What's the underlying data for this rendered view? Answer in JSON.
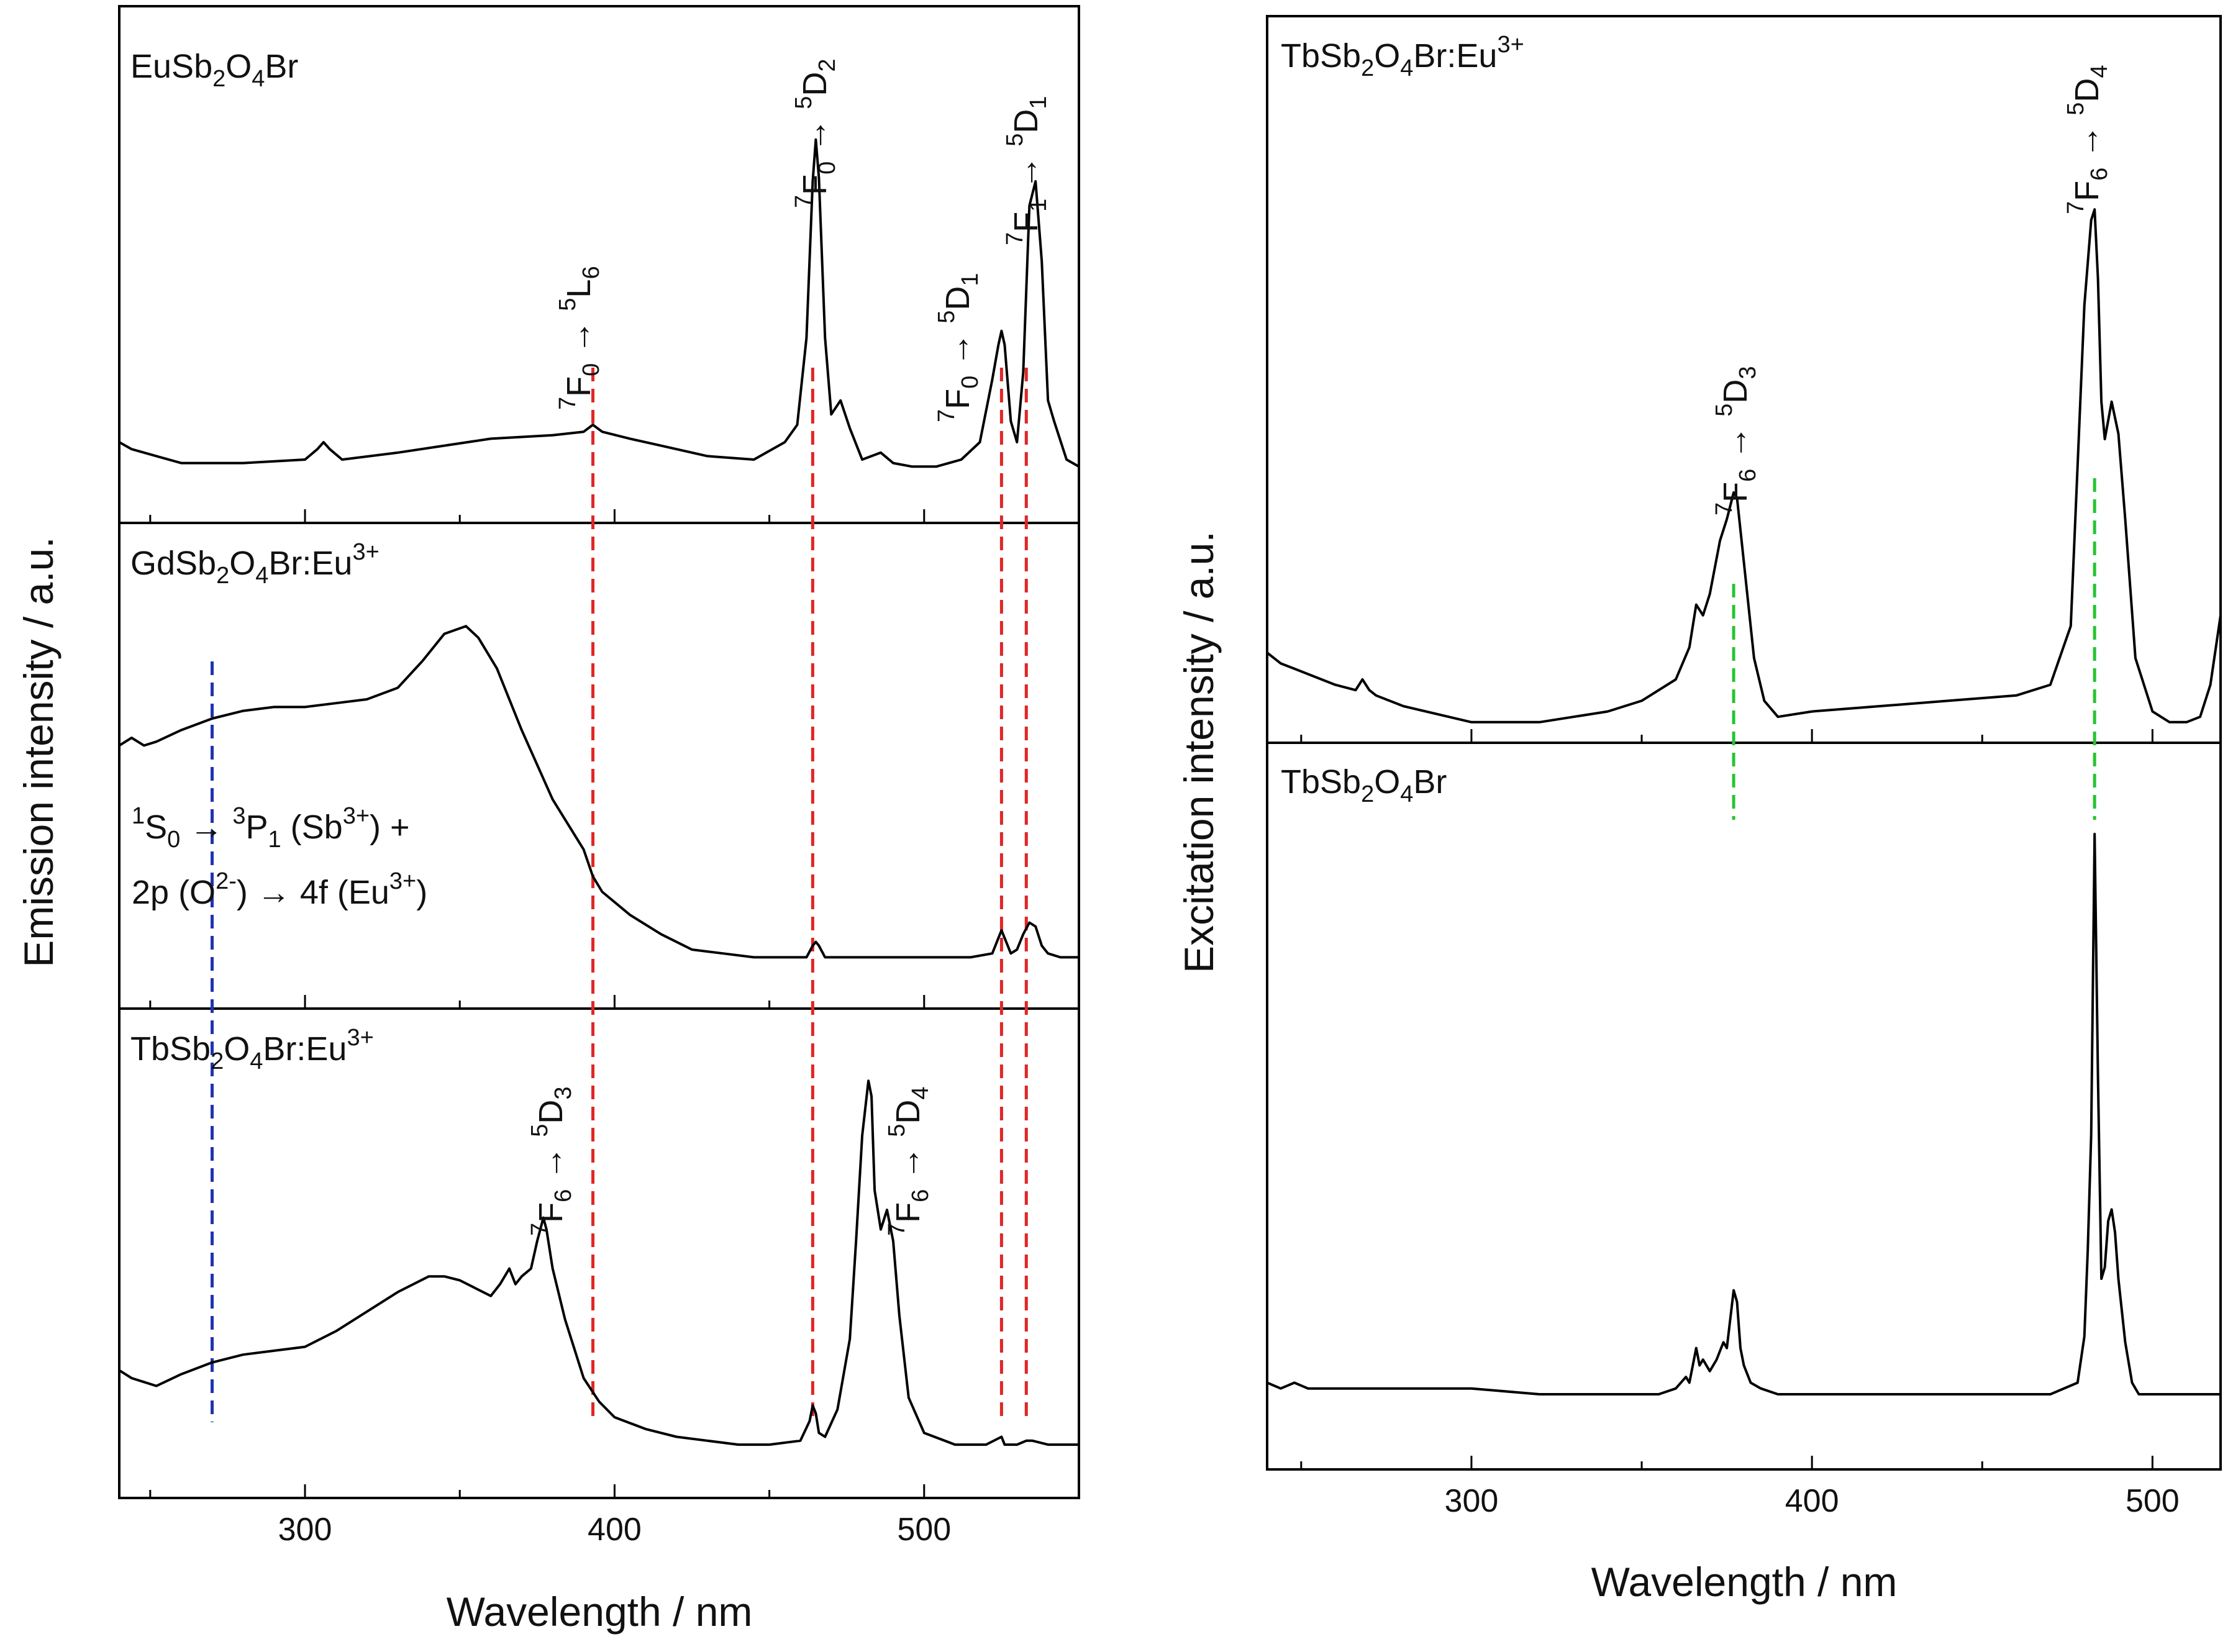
{
  "chart_data": [
    {
      "type": "line",
      "title": "",
      "xlabel": "Wavelength / nm",
      "ylabel": "Emission intensity / a.u.",
      "xlim": [
        240,
        550
      ],
      "xticks": [
        300,
        400,
        500
      ],
      "ylim": [
        0,
        1
      ],
      "panels": [
        {
          "label_base": "EuSb",
          "label_sub1": "2",
          "label_mid": "O",
          "label_sub2": "4",
          "label_end": "Br",
          "label_sup": "",
          "series": {
            "name": "EuSb2O4Br",
            "x": [
              240,
              244,
              248,
              252,
              260,
              280,
              300,
              304,
              306,
              308,
              312,
              330,
              360,
              380,
              390,
              393,
              396,
              405,
              415,
              430,
              445,
              455,
              459,
              462,
              464,
              465,
              466,
              468,
              470,
              473,
              476,
              480,
              486,
              490,
              496,
              504,
              512,
              518,
              522,
              524,
              525,
              526,
              528,
              530,
              532,
              534,
              536,
              538,
              540,
              542,
              546,
              550
            ],
            "y": [
              0.1,
              0.08,
              0.07,
              0.06,
              0.04,
              0.04,
              0.05,
              0.08,
              0.1,
              0.08,
              0.05,
              0.07,
              0.11,
              0.12,
              0.13,
              0.15,
              0.13,
              0.11,
              0.09,
              0.06,
              0.05,
              0.1,
              0.15,
              0.4,
              0.85,
              0.97,
              0.86,
              0.4,
              0.18,
              0.22,
              0.14,
              0.05,
              0.07,
              0.04,
              0.03,
              0.03,
              0.05,
              0.1,
              0.28,
              0.38,
              0.42,
              0.38,
              0.16,
              0.1,
              0.3,
              0.78,
              0.85,
              0.62,
              0.22,
              0.16,
              0.05,
              0.03
            ]
          }
        },
        {
          "label_base": "GdSb",
          "label_sub1": "2",
          "label_mid": "O",
          "label_sub2": "4",
          "label_end": "Br:Eu",
          "label_sup": "3+",
          "series": {
            "name": "GdSb2O4Br:Eu3+",
            "x": [
              240,
              244,
              248,
              252,
              260,
              270,
              280,
              290,
              300,
              310,
              320,
              330,
              338,
              345,
              352,
              356,
              362,
              370,
              380,
              390,
              393,
              396,
              405,
              415,
              425,
              435,
              445,
              455,
              462,
              464,
              465,
              466,
              468,
              472,
              480,
              500,
              515,
              522,
              524,
              525,
              526,
              528,
              530,
              532,
              534,
              536,
              538,
              540,
              544,
              550
            ],
            "y": [
              0.58,
              0.6,
              0.58,
              0.59,
              0.62,
              0.65,
              0.67,
              0.68,
              0.68,
              0.69,
              0.7,
              0.73,
              0.8,
              0.87,
              0.89,
              0.86,
              0.78,
              0.62,
              0.44,
              0.31,
              0.24,
              0.2,
              0.14,
              0.09,
              0.05,
              0.04,
              0.03,
              0.03,
              0.03,
              0.06,
              0.07,
              0.06,
              0.03,
              0.03,
              0.03,
              0.03,
              0.03,
              0.04,
              0.08,
              0.1,
              0.08,
              0.04,
              0.05,
              0.09,
              0.12,
              0.11,
              0.06,
              0.04,
              0.03,
              0.03
            ]
          },
          "annotation": {
            "line1_a": "S",
            "line1_pre_sup": "1",
            "line1_sub": "0",
            "line1_arrow": "→",
            "line1_b_sup": "3",
            "line1_b": "P",
            "line1_b_sub": "1",
            "line1_c": "(Sb",
            "line1_c_sup": "3+",
            "line1_d": ") +",
            "line2_a": "2p (O",
            "line2_sup": "2-",
            "line2_b": ") → 4f (Eu",
            "line2_sup2": "3+",
            "line2_c": ")"
          }
        },
        {
          "label_base": "TbSb",
          "label_sub1": "2",
          "label_mid": "O",
          "label_sub2": "4",
          "label_end": "Br:Eu",
          "label_sup": "3+",
          "series": {
            "name": "TbSb2O4Br:Eu3+ (emission)",
            "x": [
              240,
              244,
              248,
              252,
              260,
              270,
              280,
              290,
              300,
              310,
              320,
              330,
              340,
              345,
              350,
              355,
              360,
              363,
              366,
              368,
              370,
              373,
              375,
              377,
              378,
              380,
              384,
              390,
              395,
              400,
              410,
              420,
              430,
              440,
              450,
              460,
              463,
              464,
              465,
              466,
              468,
              472,
              476,
              478,
              480,
              482,
              483,
              484,
              486,
              488,
              490,
              492,
              495,
              500,
              510,
              520,
              525,
              526,
              530,
              533,
              535,
              540,
              550
            ],
            "y": [
              0.22,
              0.2,
              0.19,
              0.18,
              0.21,
              0.24,
              0.26,
              0.27,
              0.28,
              0.32,
              0.37,
              0.42,
              0.46,
              0.46,
              0.45,
              0.43,
              0.41,
              0.44,
              0.48,
              0.44,
              0.46,
              0.48,
              0.55,
              0.61,
              0.58,
              0.48,
              0.35,
              0.2,
              0.14,
              0.1,
              0.07,
              0.05,
              0.04,
              0.03,
              0.03,
              0.04,
              0.09,
              0.13,
              0.11,
              0.06,
              0.05,
              0.12,
              0.3,
              0.55,
              0.82,
              0.96,
              0.92,
              0.68,
              0.58,
              0.63,
              0.55,
              0.36,
              0.15,
              0.06,
              0.03,
              0.03,
              0.05,
              0.03,
              0.03,
              0.04,
              0.04,
              0.03,
              0.03
            ]
          }
        }
      ],
      "guides": [
        {
          "x": 270,
          "color": "#1f33b0",
          "from_panel": 1,
          "to_panel": 2
        },
        {
          "x": 393,
          "color": "#e02626",
          "from_panel": 0,
          "to_panel": 2
        },
        {
          "x": 464,
          "color": "#e02626",
          "from_panel": 0,
          "to_panel": 2
        },
        {
          "x": 525,
          "color": "#e02626",
          "from_panel": 0,
          "to_panel": 2
        },
        {
          "x": 533,
          "color": "#e02626",
          "from_panel": 0,
          "to_panel": 2
        }
      ],
      "transitions": [
        {
          "panel": 0,
          "x": 393,
          "lo": "F",
          "lo_pre": "7",
          "lo_sub": "0",
          "hi": "L",
          "hi_pre": "5",
          "hi_sub": "6"
        },
        {
          "panel": 0,
          "x": 466,
          "lo": "F",
          "lo_pre": "7",
          "lo_sub": "0",
          "hi": "D",
          "hi_pre": "5",
          "hi_sub": "2"
        },
        {
          "panel": 0,
          "x": 511,
          "lo": "F",
          "lo_pre": "7",
          "lo_sub": "0",
          "hi": "D",
          "hi_pre": "5",
          "hi_sub": "1"
        },
        {
          "panel": 0,
          "x": 534,
          "lo": "F",
          "lo_pre": "7",
          "lo_sub": "1",
          "hi": "D",
          "hi_pre": "5",
          "hi_sub": "1"
        },
        {
          "panel": 2,
          "x": 378,
          "lo": "F",
          "lo_pre": "7",
          "lo_sub": "6",
          "hi": "D",
          "hi_pre": "5",
          "hi_sub": "3"
        },
        {
          "panel": 2,
          "x": 499,
          "lo": "F",
          "lo_pre": "7",
          "lo_sub": "6",
          "hi": "D",
          "hi_pre": "5",
          "hi_sub": "4"
        }
      ]
    },
    {
      "type": "line",
      "title": "",
      "xlabel": "Wavelength / nm",
      "ylabel": "Excitation intensity / a.u.",
      "xlim": [
        240,
        520
      ],
      "xticks": [
        300,
        400,
        500
      ],
      "ylim": [
        0,
        1
      ],
      "panels": [
        {
          "label_base": "TbSb",
          "label_sub1": "2",
          "label_mid": "O",
          "label_sub2": "4",
          "label_end": "Br:Eu",
          "label_sup": "3+",
          "series": {
            "name": "TbSb2O4Br:Eu3+ (excitation)",
            "x": [
              240,
              244,
              248,
              252,
              260,
              266,
              268,
              270,
              272,
              280,
              300,
              320,
              340,
              350,
              360,
              364,
              366,
              368,
              370,
              373,
              375,
              377,
              378,
              380,
              383,
              386,
              390,
              400,
              420,
              440,
              460,
              470,
              476,
              478,
              480,
              482,
              483,
              484,
              485,
              486,
              488,
              490,
              492,
              495,
              500,
              505,
              510,
              514,
              517,
              520
            ],
            "y": [
              0.15,
              0.13,
              0.12,
              0.11,
              0.09,
              0.08,
              0.1,
              0.08,
              0.07,
              0.05,
              0.02,
              0.02,
              0.04,
              0.06,
              0.1,
              0.16,
              0.24,
              0.22,
              0.26,
              0.36,
              0.4,
              0.45,
              0.44,
              0.32,
              0.14,
              0.06,
              0.03,
              0.04,
              0.05,
              0.06,
              0.07,
              0.09,
              0.2,
              0.5,
              0.8,
              0.96,
              0.98,
              0.85,
              0.62,
              0.55,
              0.62,
              0.56,
              0.4,
              0.14,
              0.04,
              0.02,
              0.02,
              0.03,
              0.09,
              0.22
            ]
          }
        },
        {
          "label_base": "TbSb",
          "label_sub1": "2",
          "label_mid": "O",
          "label_sub2": "4",
          "label_end": "Br",
          "label_sup": "",
          "series": {
            "name": "TbSb2O4Br",
            "x": [
              240,
              244,
              248,
              252,
              260,
              280,
              300,
              320,
              340,
              355,
              360,
              363,
              364,
              365,
              366,
              367,
              368,
              370,
              372,
              374,
              375,
              376,
              377,
              378,
              379,
              380,
              382,
              385,
              390,
              400,
              420,
              440,
              460,
              470,
              478,
              480,
              481,
              482,
              483,
              484,
              485,
              486,
              487,
              488,
              489,
              490,
              492,
              494,
              496,
              500,
              510,
              520
            ],
            "y": [
              0.02,
              0.01,
              0.02,
              0.01,
              0.01,
              0.01,
              0.01,
              0.0,
              0.0,
              0.0,
              0.01,
              0.03,
              0.02,
              0.05,
              0.08,
              0.05,
              0.06,
              0.04,
              0.06,
              0.09,
              0.08,
              0.13,
              0.18,
              0.16,
              0.08,
              0.05,
              0.02,
              0.01,
              0.0,
              0.0,
              0.0,
              0.0,
              0.0,
              0.0,
              0.02,
              0.1,
              0.25,
              0.45,
              0.97,
              0.55,
              0.2,
              0.22,
              0.3,
              0.32,
              0.28,
              0.2,
              0.09,
              0.02,
              0.0,
              0.0,
              0.0,
              0.0
            ]
          }
        }
      ],
      "guides": [
        {
          "x": 377,
          "color": "#26c430",
          "from_panel": 0,
          "to_panel": 1
        },
        {
          "x": 483,
          "color": "#26c430",
          "from_panel": 0,
          "to_panel": 1
        }
      ],
      "transitions": [
        {
          "panel": 0,
          "x": 377,
          "lo": "F",
          "lo_pre": "7",
          "lo_sub": "6",
          "hi": "D",
          "hi_pre": "5",
          "hi_sub": "3"
        },
        {
          "panel": 0,
          "x": 483,
          "lo": "F",
          "lo_pre": "7",
          "lo_sub": "6",
          "hi": "D",
          "hi_pre": "5",
          "hi_sub": "4"
        }
      ]
    }
  ]
}
